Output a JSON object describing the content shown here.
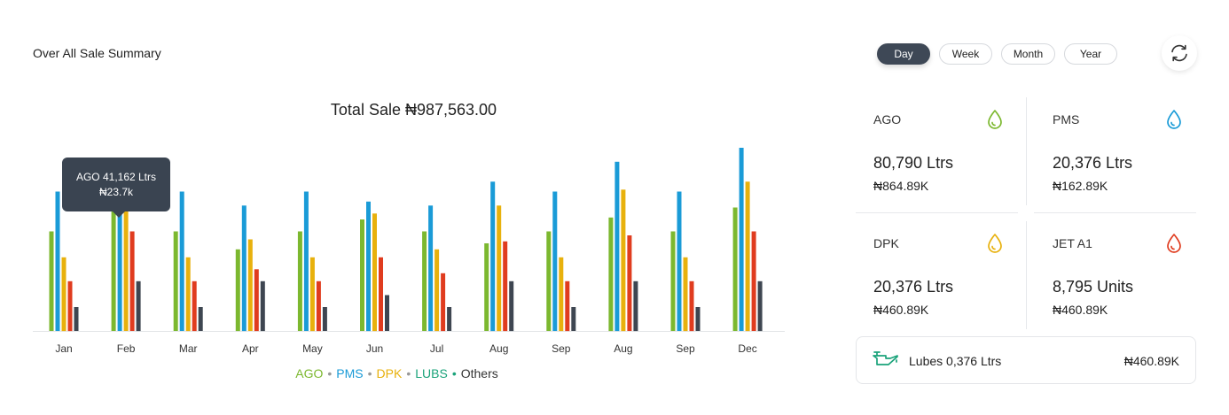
{
  "header": {
    "title": "Over All Sale Summary"
  },
  "range_tabs": [
    {
      "label": "Day",
      "active": true
    },
    {
      "label": "Week",
      "active": false
    },
    {
      "label": "Month",
      "active": false
    },
    {
      "label": "Year",
      "active": false
    }
  ],
  "refresh": {
    "icon": "refresh-icon"
  },
  "chart_data": {
    "type": "bar",
    "title": "Total Sale ₦987,563.00",
    "xlabel": "",
    "ylabel": "",
    "ylim": [
      0,
      100
    ],
    "grid": false,
    "legend_position": "bottom-center",
    "categories": [
      "Jan",
      "Feb",
      "Mar",
      "Apr",
      "May",
      "Jun",
      "Jul",
      "Aug",
      "Sep",
      "Aug",
      "Sep",
      "Dec"
    ],
    "series": [
      {
        "name": "AGO",
        "color": "#7cb82f",
        "values": [
          50,
          62,
          50,
          41,
          50,
          56,
          50,
          44,
          50,
          57,
          50,
          62
        ]
      },
      {
        "name": "PMS",
        "color": "#1a9bd7",
        "values": [
          70,
          72,
          70,
          63,
          70,
          65,
          63,
          75,
          70,
          85,
          70,
          92
        ]
      },
      {
        "name": "DPK",
        "color": "#e8b10d",
        "values": [
          37,
          72,
          37,
          46,
          37,
          59,
          41,
          63,
          37,
          71,
          37,
          75
        ]
      },
      {
        "name": "LUBS",
        "color": "#e03c1f",
        "values": [
          25,
          50,
          25,
          31,
          25,
          37,
          29,
          45,
          25,
          48,
          25,
          50
        ]
      },
      {
        "name": "Others",
        "color": "#3e4651",
        "values": [
          12,
          25,
          12,
          25,
          12,
          18,
          12,
          25,
          12,
          25,
          12,
          25
        ]
      }
    ],
    "tooltip": {
      "line1": "AGO 41,162 Ltrs",
      "line2": "₦23.7k"
    }
  },
  "legend": [
    {
      "label": "AGO",
      "color": "#7cb82f"
    },
    {
      "label": "PMS",
      "color": "#1a9bd7"
    },
    {
      "label": "DPK",
      "color": "#e8b10d"
    },
    {
      "label": "LUBS",
      "color": "#1aa37a"
    },
    {
      "label": "Others",
      "color": "#333333"
    }
  ],
  "stats": [
    {
      "name": "AGO",
      "qty": "80,790 Ltrs",
      "amount": "₦864.89K",
      "icon": "drop-icon",
      "color": "#7cb82f"
    },
    {
      "name": "PMS",
      "qty": "20,376 Ltrs",
      "amount": "₦162.89K",
      "icon": "drop-icon",
      "color": "#1a9bd7"
    },
    {
      "name": "DPK",
      "qty": "20,376 Ltrs",
      "amount": "₦460.89K",
      "icon": "drop-icon",
      "color": "#e8b10d"
    },
    {
      "name": "JET A1",
      "qty": "8,795 Units",
      "amount": "₦460.89K",
      "icon": "drop-icon",
      "color": "#e03c1f"
    }
  ],
  "lubes": {
    "label": "Lubes 0,376 Ltrs",
    "amount": "₦460.89K",
    "icon": "oil-can-icon",
    "color": "#1aa37a"
  }
}
